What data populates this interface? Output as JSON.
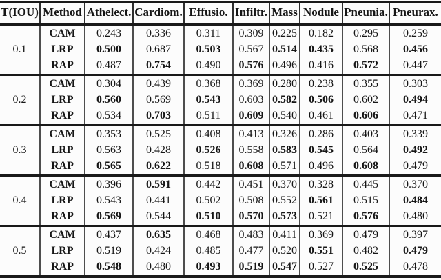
{
  "colors": {
    "background": "#fcfcfc",
    "rule": "#191919",
    "bar": "#4d4d4d",
    "text": "#161616"
  },
  "table": {
    "columns": [
      "T(IOU)",
      "Method",
      "Athelect.",
      "Cardiom.",
      "Effusio.",
      "Infiltr.",
      "Mass",
      "Nodule",
      "Pneunia.",
      "Pneurax."
    ],
    "groups": [
      {
        "tiou": "0.1",
        "rows": [
          {
            "method": "CAM",
            "values": [
              "0.243",
              "0.336",
              "0.311",
              "0.309",
              "0.225",
              "0.182",
              "0.295",
              "0.259"
            ],
            "bold": [
              0,
              0,
              0,
              0,
              0,
              0,
              0,
              0
            ]
          },
          {
            "method": "LRP",
            "values": [
              "0.500",
              "0.687",
              "0.503",
              "0.567",
              "0.514",
              "0.435",
              "0.568",
              "0.456"
            ],
            "bold": [
              1,
              0,
              1,
              0,
              1,
              1,
              0,
              1
            ]
          },
          {
            "method": "RAP",
            "values": [
              "0.487",
              "0.754",
              "0.490",
              "0.576",
              "0.496",
              "0.416",
              "0.572",
              "0.447"
            ],
            "bold": [
              0,
              1,
              0,
              1,
              0,
              0,
              1,
              0
            ]
          }
        ]
      },
      {
        "tiou": "0.2",
        "rows": [
          {
            "method": "CAM",
            "values": [
              "0.304",
              "0.439",
              "0.368",
              "0.369",
              "0.280",
              "0.238",
              "0.355",
              "0.303"
            ],
            "bold": [
              0,
              0,
              0,
              0,
              0,
              0,
              0,
              0
            ]
          },
          {
            "method": "LRP",
            "values": [
              "0.560",
              "0.569",
              "0.543",
              "0.603",
              "0.582",
              "0.506",
              "0.602",
              "0.494"
            ],
            "bold": [
              1,
              0,
              1,
              0,
              1,
              1,
              0,
              1
            ]
          },
          {
            "method": "RAP",
            "values": [
              "0.534",
              "0.703",
              "0.511",
              "0.609",
              "0.540",
              "0.461",
              "0.606",
              "0.471"
            ],
            "bold": [
              0,
              1,
              0,
              1,
              0,
              0,
              1,
              0
            ]
          }
        ]
      },
      {
        "tiou": "0.3",
        "rows": [
          {
            "method": "CAM",
            "values": [
              "0.353",
              "0.525",
              "0.408",
              "0.413",
              "0.326",
              "0.286",
              "0.403",
              "0.339"
            ],
            "bold": [
              0,
              0,
              0,
              0,
              0,
              0,
              0,
              0
            ]
          },
          {
            "method": "LRP",
            "values": [
              "0.563",
              "0.428",
              "0.526",
              "0.558",
              "0.583",
              "0.545",
              "0.564",
              "0.492"
            ],
            "bold": [
              0,
              0,
              1,
              0,
              1,
              1,
              0,
              1
            ]
          },
          {
            "method": "RAP",
            "values": [
              "0.565",
              "0.622",
              "0.518",
              "0.608",
              "0.571",
              "0.496",
              "0.608",
              "0.479"
            ],
            "bold": [
              1,
              1,
              0,
              1,
              0,
              0,
              1,
              0
            ]
          }
        ]
      },
      {
        "tiou": "0.4",
        "rows": [
          {
            "method": "CAM",
            "values": [
              "0.396",
              "0.591",
              "0.442",
              "0.451",
              "0.370",
              "0.328",
              "0.445",
              "0.370"
            ],
            "bold": [
              0,
              1,
              0,
              0,
              0,
              0,
              0,
              0
            ]
          },
          {
            "method": "LRP",
            "values": [
              "0.543",
              "0.441",
              "0.502",
              "0.508",
              "0.552",
              "0.561",
              "0.515",
              "0.484"
            ],
            "bold": [
              0,
              0,
              0,
              0,
              0,
              1,
              0,
              1
            ]
          },
          {
            "method": "RAP",
            "values": [
              "0.569",
              "0.544",
              "0.510",
              "0.570",
              "0.573",
              "0.521",
              "0.576",
              "0.480"
            ],
            "bold": [
              1,
              0,
              1,
              1,
              1,
              0,
              1,
              0
            ]
          }
        ]
      },
      {
        "tiou": "0.5",
        "rows": [
          {
            "method": "CAM",
            "values": [
              "0.437",
              "0.635",
              "0.468",
              "0.483",
              "0.411",
              "0.369",
              "0.479",
              "0.397"
            ],
            "bold": [
              0,
              1,
              0,
              0,
              0,
              0,
              0,
              0
            ]
          },
          {
            "method": "LRP",
            "values": [
              "0.519",
              "0.424",
              "0.485",
              "0.477",
              "0.520",
              "0.551",
              "0.482",
              "0.479"
            ],
            "bold": [
              0,
              0,
              0,
              0,
              0,
              1,
              0,
              1
            ]
          },
          {
            "method": "RAP",
            "values": [
              "0.548",
              "0.480",
              "0.493",
              "0.519",
              "0.547",
              "0.527",
              "0.525",
              "0.478"
            ],
            "bold": [
              1,
              0,
              1,
              1,
              1,
              0,
              1,
              0
            ]
          }
        ]
      }
    ]
  }
}
